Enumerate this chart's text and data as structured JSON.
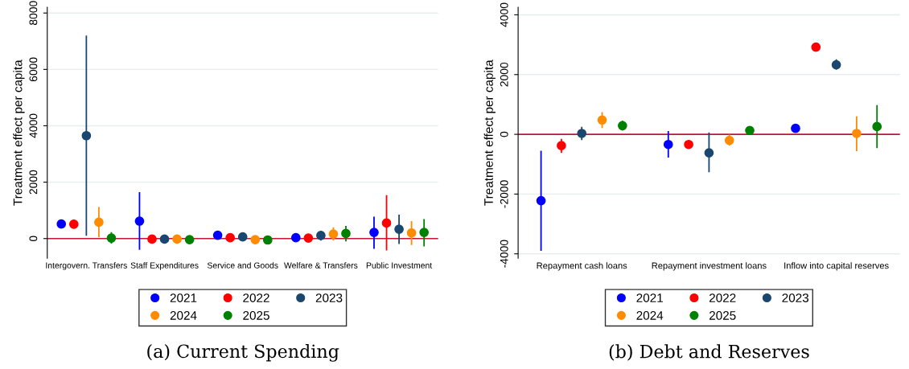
{
  "chart_data": [
    {
      "type": "scatter",
      "ylabel": "Treatment effect per capita",
      "categories": [
        "Intergovern. Transfers",
        "Staff Expenditures",
        "Service and Goods",
        "Welfare & Transfers",
        "Public Investment"
      ],
      "series": [
        {
          "name": "2021",
          "color": "#0000ff",
          "values": [
            520,
            620,
            120,
            30,
            220
          ],
          "errors": [
            [
              360,
              680
            ],
            [
              -400,
              1650
            ],
            null,
            null,
            [
              -360,
              780
            ]
          ]
        },
        {
          "name": "2022",
          "color": "#ff0000",
          "values": [
            510,
            -20,
            30,
            20,
            550
          ],
          "errors": [
            [
              360,
              680
            ],
            null,
            null,
            null,
            [
              -420,
              1540
            ]
          ]
        },
        {
          "name": "2023",
          "color": "#1a476f",
          "values": [
            3650,
            -20,
            60,
            110,
            330
          ],
          "errors": [
            [
              100,
              7200
            ],
            null,
            null,
            [
              -70,
              280
            ],
            [
              -190,
              850
            ]
          ]
        },
        {
          "name": "2024",
          "color": "#ff8c00",
          "values": [
            580,
            -20,
            -40,
            160,
            200
          ],
          "errors": [
            [
              50,
              1120
            ],
            null,
            null,
            [
              -70,
              400
            ],
            [
              -230,
              620
            ]
          ]
        },
        {
          "name": "2025",
          "color": "#008000",
          "values": [
            20,
            -40,
            -50,
            180,
            220
          ],
          "errors": [
            [
              -180,
              230
            ],
            null,
            null,
            [
              -100,
              450
            ],
            [
              -280,
              690
            ]
          ]
        }
      ],
      "ylim": [
        -700,
        8200
      ],
      "yticks": [
        0,
        2000,
        4000,
        6000,
        8000
      ],
      "grid": "y",
      "legend": "bottom",
      "marker": "circle",
      "ref_lines": [
        {
          "axis": "y",
          "value": 0,
          "color": "#c0163a"
        }
      ],
      "annotations": [
        "(a) Current Spending"
      ]
    },
    {
      "type": "scatter",
      "ylabel": "Treatment effect per capita",
      "categories": [
        "Repayment cash loans",
        "Repayment investment loans",
        "Inflow into capital reserves"
      ],
      "series": [
        {
          "name": "2021",
          "color": "#0000ff",
          "values": [
            -2220,
            -340,
            200
          ],
          "errors": [
            [
              -3900,
              -550
            ],
            [
              -780,
              110
            ],
            null
          ]
        },
        {
          "name": "2022",
          "color": "#ff0000",
          "values": [
            -380,
            -340,
            2920
          ],
          "errors": [
            [
              -620,
              -150
            ],
            null,
            null
          ]
        },
        {
          "name": "2023",
          "color": "#1a476f",
          "values": [
            30,
            -620,
            2330
          ],
          "errors": [
            [
              -190,
              250
            ],
            [
              -1270,
              60
            ],
            [
              2160,
              2510
            ]
          ]
        },
        {
          "name": "2024",
          "color": "#ff8c00",
          "values": [
            480,
            -200,
            30
          ],
          "errors": [
            [
              210,
              740
            ],
            [
              -380,
              -10
            ],
            [
              -560,
              600
            ]
          ]
        },
        {
          "name": "2025",
          "color": "#008000",
          "values": [
            290,
            130,
            260
          ],
          "errors": [
            [
              130,
              460
            ],
            [
              20,
              270
            ],
            [
              -460,
              980
            ]
          ]
        }
      ],
      "ylim": [
        -4150,
        4250
      ],
      "yticks": [
        -4000,
        -2000,
        0,
        2000,
        4000
      ],
      "grid": "y",
      "legend": "bottom",
      "marker": "circle",
      "ref_lines": [
        {
          "axis": "y",
          "value": 0,
          "color": "#c0163a"
        }
      ],
      "annotations": [
        "(b) Debt and Reserves"
      ]
    }
  ]
}
